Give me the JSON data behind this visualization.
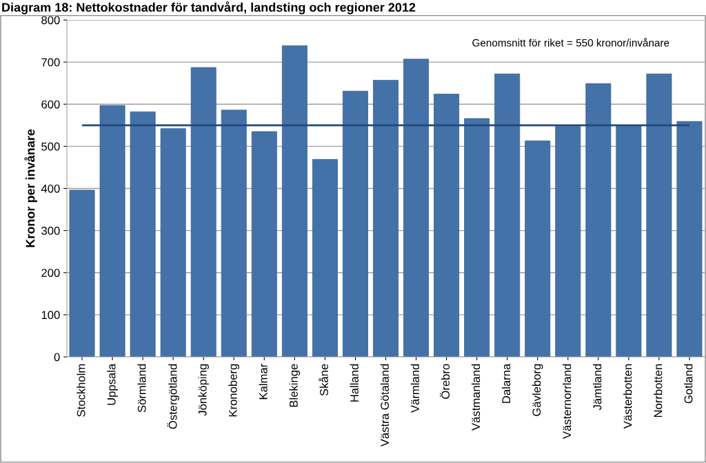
{
  "chart_data": {
    "type": "bar",
    "title": "Diagram 18: Nettokostnader för tandvård, landsting och regioner 2012",
    "ylabel": "Kronor per invånare",
    "categories": [
      "Stockholm",
      "Uppsala",
      "Sörmland",
      "Östergötland",
      "Jönköping",
      "Kronoberg",
      "Kalmar",
      "Blekinge",
      "Skåne",
      "Halland",
      "Västra Götaland",
      "Värmland",
      "Örebro",
      "Västmanland",
      "Dalarna",
      "Gävleborg",
      "Västernorrland",
      "Jämtland",
      "Västerbotten",
      "Norrbotten",
      "Gotland"
    ],
    "values": [
      396,
      597,
      582,
      542,
      687,
      586,
      535,
      739,
      469,
      631,
      657,
      707,
      624,
      566,
      672,
      513,
      547,
      649,
      550,
      672,
      559
    ],
    "color": "#4472a8",
    "ylim": [
      0,
      800
    ],
    "yticks": [
      0,
      100,
      200,
      300,
      400,
      500,
      600,
      700,
      800
    ],
    "grid": "y",
    "annotations": [
      "Genomsnitt för riket = 550 kronor/invånare"
    ],
    "ref_lines": [
      {
        "axis": "y",
        "value": 550,
        "color": "#1f497d"
      }
    ]
  }
}
